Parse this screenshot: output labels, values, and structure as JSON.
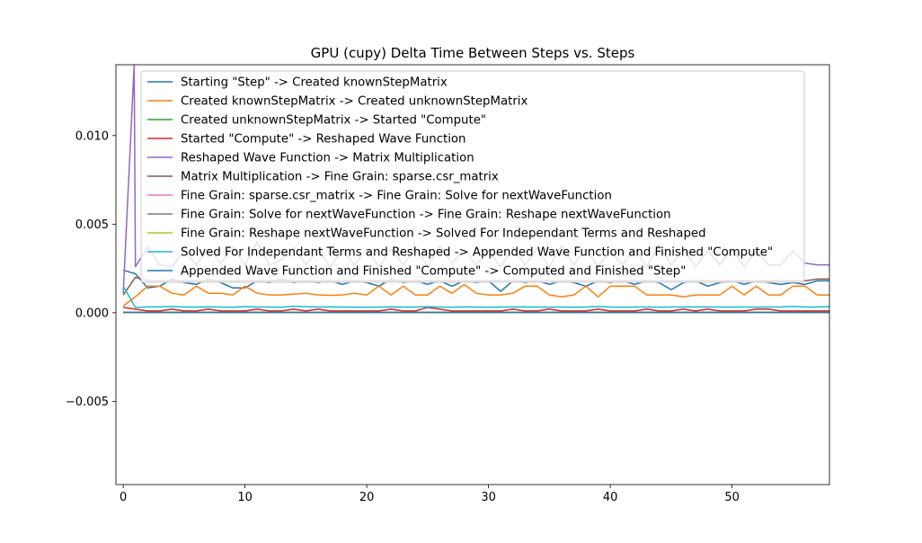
{
  "chart_data": {
    "type": "line",
    "title": "GPU (cupy) Delta Time Between Steps vs. Steps",
    "xlabel": "",
    "ylabel": "",
    "xlim": [
      -0.6,
      58
    ],
    "ylim": [
      -0.0097,
      0.014
    ],
    "xticks": [
      0,
      10,
      20,
      30,
      40,
      50
    ],
    "yticks": [
      -0.005,
      0.0,
      0.005,
      0.01
    ],
    "ytick_labels": [
      "−0.005",
      "0.000",
      "0.005",
      "0.010"
    ],
    "grid": false,
    "legend_position": "top-right",
    "series": [
      {
        "name": "Starting \"Step\" -> Created knownStepMatrix",
        "color": "#1f77b4",
        "x": [
          0,
          1,
          2,
          3,
          4,
          5,
          6,
          7,
          8,
          9,
          10,
          11,
          12,
          13,
          14,
          15,
          16,
          17,
          18,
          19,
          20,
          21,
          22,
          23,
          24,
          25,
          26,
          27,
          28,
          29,
          30,
          31,
          32,
          33,
          34,
          35,
          36,
          37,
          38,
          39,
          40,
          41,
          42,
          43,
          44,
          45,
          46,
          47,
          48,
          49,
          50,
          51,
          52,
          53,
          54,
          55,
          56,
          57,
          58
        ],
        "y": [
          0.0024,
          0.0022,
          0.0014,
          0.0015,
          0.0019,
          0.0017,
          0.0016,
          0.0019,
          0.0017,
          0.0014,
          0.0014,
          0.0018,
          0.0017,
          0.0019,
          0.0017,
          0.0018,
          0.0017,
          0.0018,
          0.0016,
          0.0018,
          0.0017,
          0.0015,
          0.0019,
          0.0017,
          0.0018,
          0.0016,
          0.0018,
          0.0015,
          0.0018,
          0.0017,
          0.0018,
          0.0012,
          0.0018,
          0.0017,
          0.0018,
          0.0016,
          0.0018,
          0.0017,
          0.0015,
          0.0018,
          0.0017,
          0.0018,
          0.0016,
          0.0018,
          0.0017,
          0.0013,
          0.0017,
          0.0018,
          0.0015,
          0.0017,
          0.0018,
          0.0016,
          0.0018,
          0.0017,
          0.0016,
          0.0017,
          0.0016,
          0.0018,
          0.0018
        ]
      },
      {
        "name": "Created knownStepMatrix -> Created unknownStepMatrix",
        "color": "#ff7f0e",
        "x": [
          0,
          1,
          2,
          3,
          4,
          5,
          6,
          7,
          8,
          9,
          10,
          11,
          12,
          13,
          14,
          15,
          16,
          17,
          18,
          19,
          20,
          21,
          22,
          23,
          24,
          25,
          26,
          27,
          28,
          29,
          30,
          31,
          32,
          33,
          34,
          35,
          36,
          37,
          38,
          39,
          40,
          41,
          42,
          43,
          44,
          45,
          46,
          47,
          48,
          49,
          50,
          51,
          52,
          53,
          54,
          55,
          56,
          57,
          58
        ],
        "y": [
          0.00038,
          0.0009,
          0.0015,
          0.0015,
          0.0011,
          0.001,
          0.0015,
          0.0011,
          0.0011,
          0.001,
          0.0015,
          0.0011,
          0.001,
          0.001,
          0.00105,
          0.0011,
          0.001,
          0.00098,
          0.001,
          0.0011,
          0.001,
          0.0015,
          0.001,
          0.0015,
          0.001,
          0.001,
          0.0015,
          0.0011,
          0.0016,
          0.0011,
          0.001,
          0.001,
          0.0011,
          0.0015,
          0.0015,
          0.001,
          0.0009,
          0.001,
          0.0015,
          0.0009,
          0.0015,
          0.0015,
          0.0015,
          0.001,
          0.001,
          0.001,
          0.0009,
          0.001,
          0.001,
          0.001,
          0.0015,
          0.001,
          0.0015,
          0.001,
          0.001,
          0.0015,
          0.0015,
          0.001,
          0.001
        ]
      },
      {
        "name": "Created unknownStepMatrix -> Started \"Compute\"",
        "color": "#2ca02c",
        "x": [
          0,
          58
        ],
        "y": [
          3e-05,
          3e-05
        ]
      },
      {
        "name": "Started \"Compute\" -> Reshaped Wave Function",
        "color": "#d62728",
        "x": [
          0,
          1,
          2,
          3,
          4,
          5,
          6,
          7,
          8,
          9,
          10,
          11,
          12,
          13,
          14,
          15,
          16,
          17,
          18,
          19,
          20,
          21,
          22,
          23,
          24,
          25,
          26,
          27,
          28,
          29,
          30,
          31,
          32,
          33,
          34,
          35,
          36,
          37,
          38,
          39,
          40,
          41,
          42,
          43,
          44,
          45,
          46,
          47,
          48,
          49,
          50,
          51,
          52,
          53,
          54,
          55,
          56,
          57,
          58
        ],
        "y": [
          0.0003,
          0.0002,
          0.0001,
          0.0001,
          0.0002,
          0.0001,
          0.0001,
          0.0002,
          0.0001,
          0.0001,
          0.0001,
          0.0002,
          0.0001,
          0.0001,
          0.0002,
          0.0001,
          0.0002,
          0.0001,
          0.0001,
          0.0001,
          0.0001,
          0.0001,
          0.0002,
          0.0001,
          0.0001,
          0.0003,
          0.0002,
          0.0001,
          0.0001,
          0.0001,
          0.0001,
          0.0001,
          0.0002,
          0.0001,
          0.0001,
          0.0002,
          0.0001,
          0.0001,
          0.0001,
          0.0002,
          0.0001,
          0.0001,
          0.0001,
          0.0002,
          0.0001,
          0.0001,
          0.0002,
          0.0001,
          0.0002,
          0.0001,
          0.0001,
          0.0001,
          0.0002,
          0.0002,
          0.0001,
          0.0001,
          0.0001,
          0.0001,
          0.0001
        ]
      },
      {
        "name": "Reshaped Wave Function -> Matrix Multiplication",
        "color": "#9467bd",
        "x": [
          0,
          0.9,
          1,
          2,
          3,
          4,
          5,
          6,
          7,
          8,
          9,
          10,
          11,
          12,
          13,
          14,
          15,
          16,
          17,
          18,
          19,
          20,
          21,
          22,
          23,
          24,
          25,
          26,
          27,
          28,
          29,
          30,
          31,
          32,
          33,
          34,
          35,
          36,
          37,
          38,
          39,
          40,
          41,
          42,
          43,
          44,
          45,
          46,
          47,
          48,
          49,
          50,
          51,
          52,
          53,
          54,
          55,
          56,
          57,
          58
        ],
        "y": [
          0.0011,
          0.014,
          0.0026,
          0.0037,
          0.0027,
          0.0026,
          0.0035,
          0.0027,
          0.0036,
          0.0028,
          0.0037,
          0.0027,
          0.004,
          0.0027,
          0.003,
          0.0037,
          0.0027,
          0.0036,
          0.0026,
          0.0035,
          0.0027,
          0.0036,
          0.0026,
          0.0036,
          0.0027,
          0.0037,
          0.0026,
          0.0038,
          0.0028,
          0.0036,
          0.0027,
          0.0035,
          0.0026,
          0.0037,
          0.0027,
          0.0036,
          0.0026,
          0.0038,
          0.0027,
          0.0036,
          0.0026,
          0.0035,
          0.0027,
          0.0036,
          0.0026,
          0.0038,
          0.0027,
          0.0036,
          0.0026,
          0.0035,
          0.0027,
          0.0036,
          0.0026,
          0.0035,
          0.0027,
          0.0027,
          0.0035,
          0.0028,
          0.0027,
          0.0027
        ]
      },
      {
        "name": "Matrix Multiplication -> Fine Grain: sparse.csr_matrix",
        "color": "#8c564b",
        "x": [
          0,
          1,
          2,
          3,
          4,
          5,
          6,
          7,
          8,
          9,
          10,
          11,
          12,
          13,
          14,
          15,
          16,
          17,
          18,
          19,
          20,
          21,
          22,
          23,
          24,
          25,
          26,
          27,
          28,
          29,
          30,
          31,
          32,
          33,
          34,
          35,
          36,
          37,
          38,
          39,
          40,
          41,
          42,
          43,
          44,
          45,
          46,
          47,
          48,
          49,
          50,
          51,
          52,
          53,
          54,
          55,
          56,
          57,
          58
        ],
        "y": [
          0.001,
          0.002,
          0.0018,
          0.0018,
          0.0018,
          0.0018,
          0.0018,
          0.0018,
          0.0018,
          0.0018,
          0.0018,
          0.0018,
          0.0018,
          0.0018,
          0.0018,
          0.0018,
          0.0018,
          0.0018,
          0.0018,
          0.0018,
          0.0018,
          0.0018,
          0.0018,
          0.0018,
          0.0018,
          0.0018,
          0.0018,
          0.0018,
          0.0018,
          0.0018,
          0.0018,
          0.0018,
          0.0018,
          0.0018,
          0.0018,
          0.0018,
          0.0018,
          0.0018,
          0.0018,
          0.0018,
          0.0018,
          0.0018,
          0.0018,
          0.0018,
          0.0018,
          0.0018,
          0.0018,
          0.0018,
          0.0018,
          0.0018,
          0.0018,
          0.0018,
          0.0018,
          0.0018,
          0.0018,
          0.0018,
          0.0018,
          0.0019,
          0.0019
        ]
      },
      {
        "name": "Fine Grain: sparse.csr_matrix -> Fine Grain: Solve for nextWaveFunction",
        "color": "#e377c2",
        "x": [
          0,
          58
        ],
        "y": [
          2e-05,
          2e-05
        ]
      },
      {
        "name": "Fine Grain: Solve for nextWaveFunction -> Fine Grain: Reshape nextWaveFunction",
        "color": "#7f7f7f",
        "x": [
          0,
          58
        ],
        "y": [
          1e-05,
          1e-05
        ]
      },
      {
        "name": "Fine Grain: Reshape nextWaveFunction -> Solved For Independant Terms and Reshaped",
        "color": "#bcbd22",
        "x": [
          0,
          58
        ],
        "y": [
          1e-05,
          1e-05
        ]
      },
      {
        "name": "Solved For Independant Terms and Reshaped -> Appended Wave Function and Finished \"Compute\"",
        "color": "#17becf",
        "x": [
          0,
          1,
          2,
          3,
          4,
          5,
          6,
          7,
          8,
          9,
          10,
          11,
          12,
          13,
          14,
          15,
          16,
          17,
          18,
          19,
          20,
          21,
          22,
          23,
          24,
          25,
          26,
          27,
          28,
          29,
          30,
          31,
          32,
          33,
          34,
          35,
          36,
          37,
          38,
          39,
          40,
          41,
          42,
          43,
          44,
          45,
          46,
          47,
          48,
          49,
          50,
          51,
          52,
          53,
          54,
          55,
          56,
          57,
          58
        ],
        "y": [
          0.0015,
          0.0003,
          0.00033,
          0.00033,
          0.00035,
          0.00032,
          0.00032,
          0.00033,
          0.00032,
          0.00031,
          0.00035,
          0.00032,
          0.00032,
          0.00031,
          0.00037,
          0.00034,
          0.00032,
          0.00033,
          0.00032,
          0.00031,
          0.00031,
          0.00032,
          0.00033,
          0.00032,
          0.00032,
          0.00034,
          0.00032,
          0.00031,
          0.00033,
          0.00032,
          0.00031,
          0.00032,
          0.00032,
          0.00033,
          0.00032,
          0.00031,
          0.00032,
          0.00031,
          0.00032,
          0.00035,
          0.00032,
          0.00031,
          0.00032,
          0.00032,
          0.00031,
          0.00032,
          0.00032,
          0.00033,
          0.00032,
          0.00032,
          0.00032,
          0.00032,
          0.00031,
          0.00032,
          0.00032,
          0.00036,
          0.00032,
          0.00032,
          0.00035
        ]
      },
      {
        "name": "Appended Wave Function and Finished \"Compute\" -> Computed and Finished \"Step\"",
        "color": "#1f77b4",
        "x": [
          0,
          58
        ],
        "y": [
          2e-05,
          2e-05
        ]
      }
    ]
  }
}
